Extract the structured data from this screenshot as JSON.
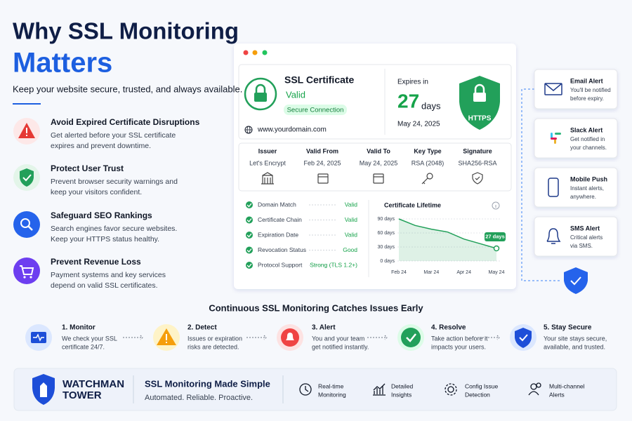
{
  "header": {
    "title_line1": "Why SSL Monitoring",
    "title_line2": "Matters",
    "subtitle": "Keep your website secure, trusted, and always available."
  },
  "features": [
    {
      "title": "Avoid Expired Certificate Disruptions",
      "lines": [
        "Get alerted before your SSL certificate",
        "expires and prevent downtime."
      ]
    },
    {
      "title": "Protect User Trust",
      "lines": [
        "Prevent browser security warnings and",
        "keep your visitors confident."
      ]
    },
    {
      "title": "Safeguard SEO Rankings",
      "lines": [
        "Search engines favor secure websites.",
        "Keep your HTTPS status healthy."
      ]
    },
    {
      "title": "Prevent Revenue Loss",
      "lines": [
        "Payment systems and key services",
        "depend on valid SSL certificates."
      ]
    }
  ],
  "certificate": {
    "title": "SSL Certificate",
    "status": "Valid",
    "badge": "Secure Connection",
    "domain": "www.yourdomain.com",
    "expires_label": "Expires in",
    "expires_number": "27",
    "expires_unit": "days",
    "expires_date": "May 24, 2025",
    "shield_label": "HTTPS",
    "details": {
      "headers": [
        "Issuer",
        "Valid From",
        "Valid To",
        "Key Type",
        "Signature"
      ],
      "values": [
        "Let's Encrypt",
        "Feb 24, 2025",
        "May 24, 2025",
        "RSA (2048)",
        "SHA256-RSA"
      ]
    },
    "checks": [
      {
        "label": "Domain Match",
        "status": "Valid"
      },
      {
        "label": "Certificate Chain",
        "status": "Valid"
      },
      {
        "label": "Expiration Date",
        "status": "Valid"
      },
      {
        "label": "Revocation Status",
        "status": "Good"
      },
      {
        "label": "Protocol Support",
        "status": "Strong (TLS 1.2+)"
      }
    ]
  },
  "chart_data": {
    "type": "line",
    "title": "Certificate Lifetime",
    "categories": [
      "Feb 24",
      null,
      "Mar 24",
      null,
      "Apr 24",
      null,
      "May 24"
    ],
    "values": [
      90,
      76,
      68,
      62,
      47,
      37,
      27
    ],
    "value_labels": [
      null,
      null,
      null,
      null,
      null,
      null,
      "27 days"
    ],
    "color": "#22a05a",
    "ylim": [
      0,
      90
    ],
    "yticks": [
      {
        "value": 0,
        "label": "0 days"
      },
      {
        "value": 30,
        "label": "30 days"
      },
      {
        "value": 60,
        "label": "60 days"
      },
      {
        "value": 90,
        "label": "90 days"
      }
    ],
    "grid": true
  },
  "alerts": [
    {
      "title": "Email Alert",
      "lines": [
        "You'll be notified",
        "before expiry."
      ]
    },
    {
      "title": "Slack Alert",
      "lines": [
        "Get notified in",
        "your channels."
      ]
    },
    {
      "title": "Mobile Push",
      "lines": [
        "Instant alerts,",
        "anywhere."
      ]
    },
    {
      "title": "SMS Alert",
      "lines": [
        "Critical alerts",
        "via SMS."
      ]
    }
  ],
  "process": {
    "title": "Continuous SSL Monitoring Catches Issues Early",
    "steps": [
      {
        "title": "1. Monitor",
        "lines": [
          "We check your SSL",
          "certificate 24/7."
        ]
      },
      {
        "title": "2. Detect",
        "lines": [
          "Issues or expiration",
          "risks are detected."
        ]
      },
      {
        "title": "3. Alert",
        "lines": [
          "You and your team",
          "get notified instantly."
        ]
      },
      {
        "title": "4. Resolve",
        "lines": [
          "Take action before it",
          "impacts your users."
        ]
      },
      {
        "title": "5. Stay Secure",
        "lines": [
          "Your site stays secure,",
          "available, and trusted."
        ]
      }
    ]
  },
  "footer": {
    "brand_line1": "WATCHMAN",
    "brand_line2": "TOWER",
    "tagline": "SSL Monitoring Made Simple",
    "subtagline": "Automated. Reliable. Proactive.",
    "features": [
      {
        "lines": [
          "Real-time",
          "Monitoring"
        ]
      },
      {
        "lines": [
          "Detailed",
          "Insights"
        ]
      },
      {
        "lines": [
          "Config Issue",
          "Detection"
        ]
      },
      {
        "lines": [
          "Multi-channel",
          "Alerts"
        ]
      }
    ]
  }
}
